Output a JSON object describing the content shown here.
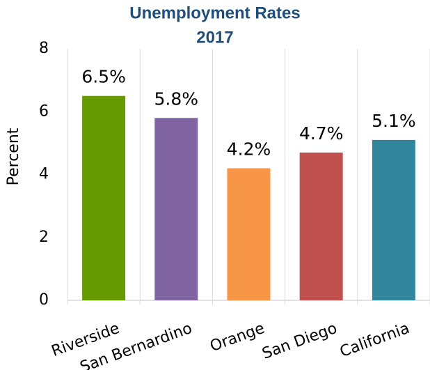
{
  "chart_data": {
    "type": "bar",
    "title": "Unemployment Rates",
    "subtitle": "2017",
    "y_label": "Percent",
    "categories": [
      "Riverside",
      "San Bernardino",
      "Orange",
      "San Diego",
      "California"
    ],
    "values": [
      6.5,
      5.8,
      4.2,
      4.7,
      5.1
    ],
    "value_labels": [
      "6.5%",
      "5.8%",
      "4.2%",
      "4.7%",
      "5.1%"
    ],
    "colors": [
      "#669900",
      "#8064a2",
      "#f79646",
      "#c0504d",
      "#31859c"
    ],
    "ylim": [
      0,
      8
    ],
    "yticks": [
      0,
      2,
      4,
      6,
      8
    ],
    "grid": "vertical"
  }
}
